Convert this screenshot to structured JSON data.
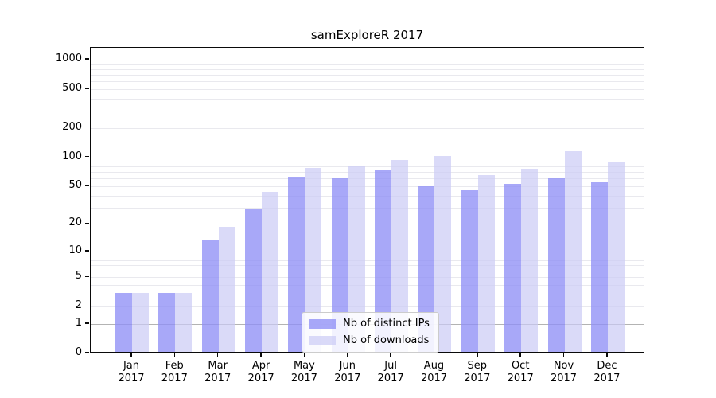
{
  "chart_data": {
    "type": "bar",
    "title": "samExploreR 2017",
    "categories": [
      "Jan 2017",
      "Feb 2017",
      "Mar 2017",
      "Apr 2017",
      "May 2017",
      "Jun 2017",
      "Jul 2017",
      "Aug 2017",
      "Sep 2017",
      "Oct 2017",
      "Nov 2017",
      "Dec 2017"
    ],
    "series": [
      {
        "name": "Nb of distinct IPs",
        "color": "rgba(143,143,246,0.78)",
        "values": [
          3,
          3,
          13,
          28,
          61,
          59,
          70,
          48,
          44,
          51,
          58,
          53
        ]
      },
      {
        "name": "Nb of downloads",
        "color": "rgba(202,202,245,0.70)",
        "values": [
          3,
          3,
          18,
          42,
          74,
          79,
          91,
          100,
          63,
          73,
          110,
          85
        ]
      }
    ],
    "yscale": "log1p",
    "yticks": [
      0,
      1,
      2,
      5,
      10,
      20,
      50,
      100,
      200,
      500,
      1000
    ],
    "ylim": [
      0,
      1300
    ],
    "xlabel": "",
    "ylabel": "",
    "grid": "horizontal, log minor gridlines",
    "legend_position": "lower center"
  }
}
